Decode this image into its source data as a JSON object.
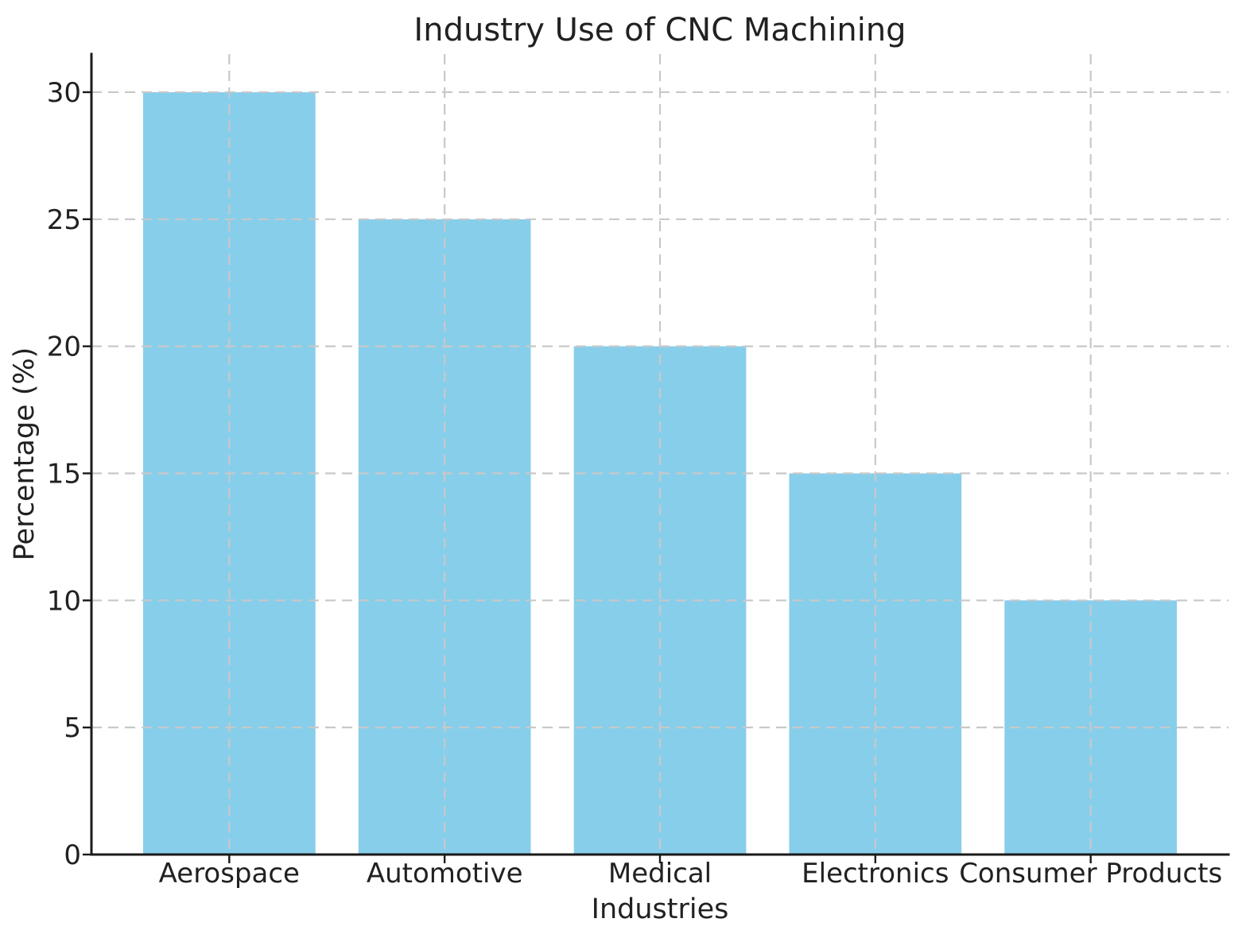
{
  "figure": {
    "background": "#ffffff"
  },
  "chart_data": {
    "type": "bar",
    "title": "Industry Use of CNC Machining",
    "xlabel": "Industries",
    "ylabel": "Percentage (%)",
    "categories": [
      "Aerospace",
      "Automotive",
      "Medical",
      "Electronics",
      "Consumer Products"
    ],
    "values": [
      30,
      25,
      20,
      15,
      10
    ],
    "yticks": [
      0,
      5,
      10,
      15,
      20,
      25,
      30
    ],
    "ylim": [
      0,
      31.5
    ],
    "bar_color": "#87CEEB",
    "grid": true,
    "grid_style": "dashed",
    "grid_color": "#c8c8c8",
    "axis_color": "#1a1a1a",
    "text_color": "#212121",
    "legend_position": "none"
  }
}
